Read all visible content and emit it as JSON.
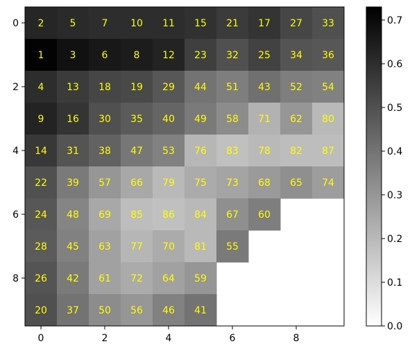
{
  "chart_data": {
    "type": "heatmap",
    "title": "",
    "xlabel": "",
    "ylabel": "",
    "colormap": "gray_r",
    "annotation_color": "#ffff00",
    "xlim": [
      -0.5,
      9.5
    ],
    "ylim": [
      9.5,
      -0.5
    ],
    "x_ticks": [
      0,
      2,
      4,
      6,
      8
    ],
    "y_ticks": [
      0,
      2,
      4,
      6,
      8
    ],
    "colorbar": {
      "vmin": 0.0,
      "vmax": 0.73,
      "ticks": [
        0.0,
        0.1,
        0.2,
        0.3,
        0.4,
        0.5,
        0.6,
        0.7
      ],
      "tick_labels": [
        "0.0",
        "0.1",
        "0.2",
        "0.3",
        "0.4",
        "0.5",
        "0.6",
        "0.7"
      ]
    },
    "cells": [
      {
        "row": 0,
        "col": 0,
        "label": "2",
        "value": 0.62
      },
      {
        "row": 0,
        "col": 1,
        "label": "5",
        "value": 0.61
      },
      {
        "row": 0,
        "col": 2,
        "label": "7",
        "value": 0.6
      },
      {
        "row": 0,
        "col": 3,
        "label": "10",
        "value": 0.6
      },
      {
        "row": 0,
        "col": 4,
        "label": "11",
        "value": 0.6
      },
      {
        "row": 0,
        "col": 5,
        "label": "15",
        "value": 0.59
      },
      {
        "row": 0,
        "col": 6,
        "label": "21",
        "value": 0.56
      },
      {
        "row": 0,
        "col": 7,
        "label": "17",
        "value": 0.58
      },
      {
        "row": 0,
        "col": 8,
        "label": "27",
        "value": 0.53
      },
      {
        "row": 0,
        "col": 9,
        "label": "33",
        "value": 0.5
      },
      {
        "row": 1,
        "col": 0,
        "label": "1",
        "value": 0.72
      },
      {
        "row": 1,
        "col": 1,
        "label": "3",
        "value": 0.68
      },
      {
        "row": 1,
        "col": 2,
        "label": "6",
        "value": 0.66
      },
      {
        "row": 1,
        "col": 3,
        "label": "8",
        "value": 0.65
      },
      {
        "row": 1,
        "col": 4,
        "label": "12",
        "value": 0.63
      },
      {
        "row": 1,
        "col": 5,
        "label": "23",
        "value": 0.55
      },
      {
        "row": 1,
        "col": 6,
        "label": "32",
        "value": 0.5
      },
      {
        "row": 1,
        "col": 7,
        "label": "25",
        "value": 0.54
      },
      {
        "row": 1,
        "col": 8,
        "label": "34",
        "value": 0.49
      },
      {
        "row": 1,
        "col": 9,
        "label": "36",
        "value": 0.48
      },
      {
        "row": 2,
        "col": 0,
        "label": "4",
        "value": 0.6
      },
      {
        "row": 2,
        "col": 1,
        "label": "13",
        "value": 0.56
      },
      {
        "row": 2,
        "col": 2,
        "label": "18",
        "value": 0.53
      },
      {
        "row": 2,
        "col": 3,
        "label": "19",
        "value": 0.52
      },
      {
        "row": 2,
        "col": 4,
        "label": "29",
        "value": 0.48
      },
      {
        "row": 2,
        "col": 5,
        "label": "44",
        "value": 0.4
      },
      {
        "row": 2,
        "col": 6,
        "label": "51",
        "value": 0.37
      },
      {
        "row": 2,
        "col": 7,
        "label": "43",
        "value": 0.41
      },
      {
        "row": 2,
        "col": 8,
        "label": "52",
        "value": 0.37
      },
      {
        "row": 2,
        "col": 9,
        "label": "54",
        "value": 0.36
      },
      {
        "row": 3,
        "col": 0,
        "label": "9",
        "value": 0.63
      },
      {
        "row": 3,
        "col": 1,
        "label": "16",
        "value": 0.58
      },
      {
        "row": 3,
        "col": 2,
        "label": "30",
        "value": 0.5
      },
      {
        "row": 3,
        "col": 3,
        "label": "35",
        "value": 0.47
      },
      {
        "row": 3,
        "col": 4,
        "label": "40",
        "value": 0.44
      },
      {
        "row": 3,
        "col": 5,
        "label": "49",
        "value": 0.38
      },
      {
        "row": 3,
        "col": 6,
        "label": "58",
        "value": 0.33
      },
      {
        "row": 3,
        "col": 7,
        "label": "71",
        "value": 0.22
      },
      {
        "row": 3,
        "col": 8,
        "label": "62",
        "value": 0.3
      },
      {
        "row": 3,
        "col": 9,
        "label": "80",
        "value": 0.2
      },
      {
        "row": 4,
        "col": 0,
        "label": "14",
        "value": 0.57
      },
      {
        "row": 4,
        "col": 1,
        "label": "31",
        "value": 0.49
      },
      {
        "row": 4,
        "col": 2,
        "label": "38",
        "value": 0.45
      },
      {
        "row": 4,
        "col": 3,
        "label": "47",
        "value": 0.39
      },
      {
        "row": 4,
        "col": 4,
        "label": "53",
        "value": 0.36
      },
      {
        "row": 4,
        "col": 5,
        "label": "76",
        "value": 0.21
      },
      {
        "row": 4,
        "col": 6,
        "label": "83",
        "value": 0.18
      },
      {
        "row": 4,
        "col": 7,
        "label": "78",
        "value": 0.2
      },
      {
        "row": 4,
        "col": 8,
        "label": "82",
        "value": 0.19
      },
      {
        "row": 4,
        "col": 9,
        "label": "87",
        "value": 0.19
      },
      {
        "row": 5,
        "col": 0,
        "label": "22",
        "value": 0.5
      },
      {
        "row": 5,
        "col": 1,
        "label": "39",
        "value": 0.38
      },
      {
        "row": 5,
        "col": 2,
        "label": "57",
        "value": 0.3
      },
      {
        "row": 5,
        "col": 3,
        "label": "66",
        "value": 0.25
      },
      {
        "row": 5,
        "col": 4,
        "label": "79",
        "value": 0.2
      },
      {
        "row": 5,
        "col": 5,
        "label": "75",
        "value": 0.24
      },
      {
        "row": 5,
        "col": 6,
        "label": "73",
        "value": 0.26
      },
      {
        "row": 5,
        "col": 7,
        "label": "68",
        "value": 0.29
      },
      {
        "row": 5,
        "col": 8,
        "label": "65",
        "value": 0.32
      },
      {
        "row": 5,
        "col": 9,
        "label": "74",
        "value": 0.28
      },
      {
        "row": 6,
        "col": 0,
        "label": "24",
        "value": 0.48
      },
      {
        "row": 6,
        "col": 1,
        "label": "48",
        "value": 0.35
      },
      {
        "row": 6,
        "col": 2,
        "label": "69",
        "value": 0.25
      },
      {
        "row": 6,
        "col": 3,
        "label": "85",
        "value": 0.19
      },
      {
        "row": 6,
        "col": 4,
        "label": "86",
        "value": 0.18
      },
      {
        "row": 6,
        "col": 5,
        "label": "84",
        "value": 0.2
      },
      {
        "row": 6,
        "col": 6,
        "label": "67",
        "value": 0.32
      },
      {
        "row": 6,
        "col": 7,
        "label": "60",
        "value": 0.37
      },
      {
        "row": 7,
        "col": 0,
        "label": "28",
        "value": 0.47
      },
      {
        "row": 7,
        "col": 1,
        "label": "45",
        "value": 0.36
      },
      {
        "row": 7,
        "col": 2,
        "label": "63",
        "value": 0.27
      },
      {
        "row": 7,
        "col": 3,
        "label": "77",
        "value": 0.21
      },
      {
        "row": 7,
        "col": 4,
        "label": "70",
        "value": 0.24
      },
      {
        "row": 7,
        "col": 5,
        "label": "81",
        "value": 0.2
      },
      {
        "row": 7,
        "col": 6,
        "label": "55",
        "value": 0.38
      },
      {
        "row": 8,
        "col": 0,
        "label": "26",
        "value": 0.49
      },
      {
        "row": 8,
        "col": 1,
        "label": "42",
        "value": 0.38
      },
      {
        "row": 8,
        "col": 2,
        "label": "61",
        "value": 0.27
      },
      {
        "row": 8,
        "col": 3,
        "label": "72",
        "value": 0.24
      },
      {
        "row": 8,
        "col": 4,
        "label": "64",
        "value": 0.27
      },
      {
        "row": 8,
        "col": 5,
        "label": "59",
        "value": 0.3
      },
      {
        "row": 9,
        "col": 0,
        "label": "20",
        "value": 0.5
      },
      {
        "row": 9,
        "col": 1,
        "label": "37",
        "value": 0.4
      },
      {
        "row": 9,
        "col": 2,
        "label": "50",
        "value": 0.33
      },
      {
        "row": 9,
        "col": 3,
        "label": "56",
        "value": 0.3
      },
      {
        "row": 9,
        "col": 4,
        "label": "46",
        "value": 0.36
      },
      {
        "row": 9,
        "col": 5,
        "label": "41",
        "value": 0.4
      }
    ]
  }
}
